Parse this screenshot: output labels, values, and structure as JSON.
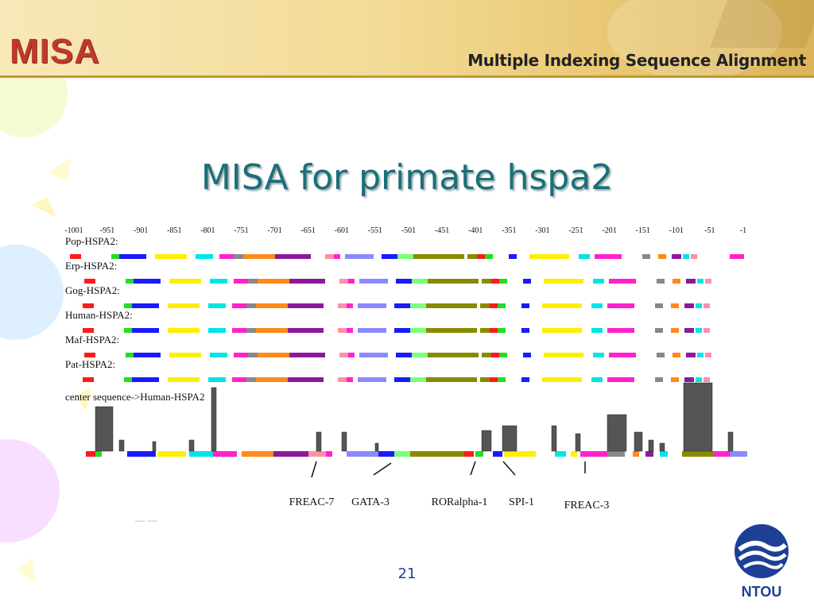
{
  "header": {
    "logo": "MISA",
    "subtitle": "Multiple Indexing Sequence Alignment"
  },
  "slide": {
    "title": "MISA for primate hspa2",
    "number": "21"
  },
  "figure": {
    "positions": [
      "-1001",
      "-951",
      "-901",
      "-851",
      "-801",
      "-751",
      "-701",
      "-651",
      "-601",
      "-551",
      "-501",
      "-451",
      "-401",
      "-351",
      "-301",
      "-251",
      "-201",
      "-151",
      "-101",
      "-51",
      "-1"
    ],
    "sequences": [
      {
        "name": "Pop-HSPA2:"
      },
      {
        "name": "Erp-HSPA2:"
      },
      {
        "name": "Gog-HSPA2:"
      },
      {
        "name": "Human-HSPA2:"
      },
      {
        "name": "Maf-HSPA2:"
      },
      {
        "name": "Pat-HSPA2:"
      }
    ],
    "center_label": "center sequence->Human-HSPA2",
    "annotations": [
      "FREAC-7",
      "GATA-3",
      "RORalpha-1",
      "SPI-1",
      "FREAC-3"
    ],
    "colors": {
      "red": "#ff1a1a",
      "green": "#22dd22",
      "blue": "#1a1aff",
      "yellow": "#ffee00",
      "cyan": "#00e5e5",
      "magenta": "#ff22cc",
      "gray": "#888888",
      "orange": "#ff8a1a",
      "purple": "#8a1a9a",
      "pink": "#ff8fa8",
      "lightblue": "#8a8aff",
      "lightgreen": "#7aff7a",
      "olive": "#8a8a00"
    }
  },
  "logo_badge": {
    "label": "NTOU"
  }
}
